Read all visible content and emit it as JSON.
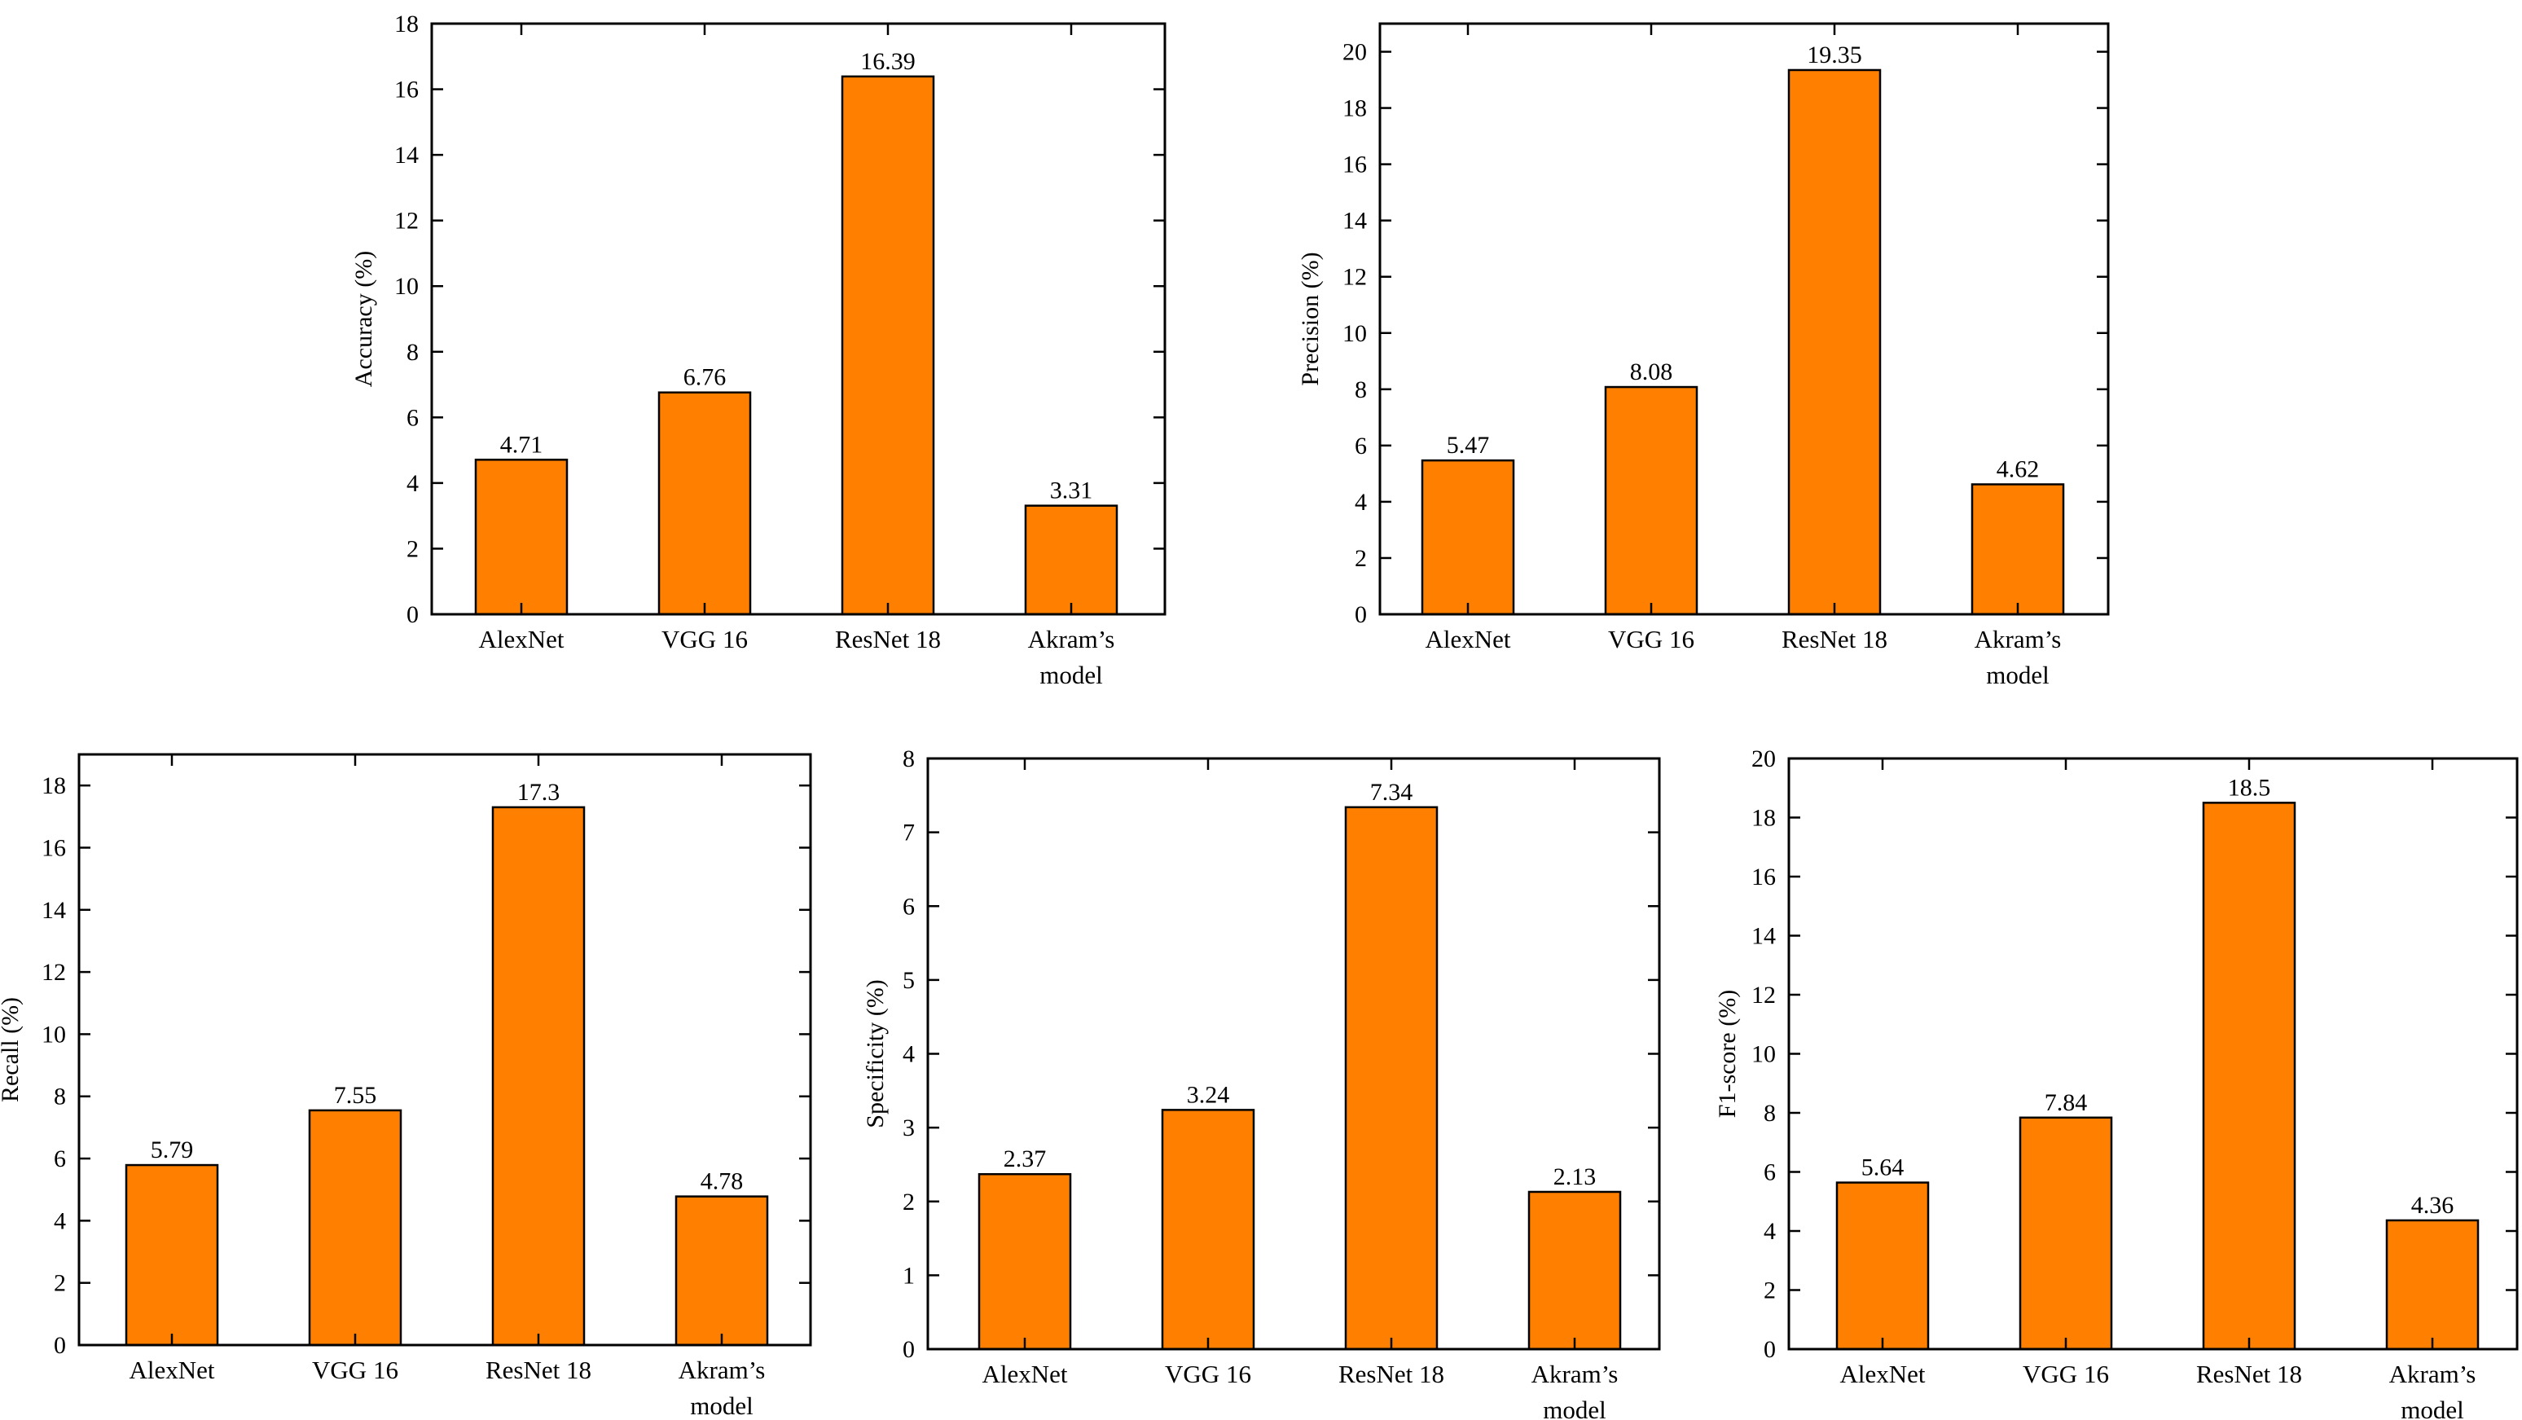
{
  "colors": {
    "bar_fill": "#FF8000",
    "bar_stroke": "#000000",
    "axis": "#000000"
  },
  "chart_data": [
    {
      "type": "bar",
      "categories": [
        "AlexNet",
        "VGG 16",
        "ResNet 18",
        "Akram’s model"
      ],
      "values": [
        4.71,
        6.76,
        16.39,
        3.31
      ],
      "value_labels": [
        "4.71",
        "6.76",
        "16.39",
        "3.31"
      ],
      "title": "",
      "xlabel": "",
      "ylabel": "Accuracy (%)",
      "ylim": [
        0,
        18
      ],
      "yticks": [
        0,
        2,
        4,
        6,
        8,
        10,
        12,
        14,
        16,
        18
      ],
      "grid": false
    },
    {
      "type": "bar",
      "categories": [
        "AlexNet",
        "VGG 16",
        "ResNet 18",
        "Akram’s model"
      ],
      "values": [
        5.47,
        8.08,
        19.35,
        4.62
      ],
      "value_labels": [
        "5.47",
        "8.08",
        "19.35",
        "4.62"
      ],
      "title": "",
      "xlabel": "",
      "ylabel": "Precision (%)",
      "ylim": [
        0,
        21
      ],
      "yticks": [
        0,
        2,
        4,
        6,
        8,
        10,
        12,
        14,
        16,
        18,
        20
      ],
      "grid": false
    },
    {
      "type": "bar",
      "categories": [
        "AlexNet",
        "VGG 16",
        "ResNet 18",
        "Akram’s model"
      ],
      "values": [
        5.79,
        7.55,
        17.3,
        4.78
      ],
      "value_labels": [
        "5.79",
        "7.55",
        "17.3",
        "4.78"
      ],
      "title": "",
      "xlabel": "",
      "ylabel": "Recall (%)",
      "ylim": [
        0,
        19
      ],
      "yticks": [
        0,
        2,
        4,
        6,
        8,
        10,
        12,
        14,
        16,
        18
      ],
      "grid": false
    },
    {
      "type": "bar",
      "categories": [
        "AlexNet",
        "VGG 16",
        "ResNet 18",
        "Akram’s model"
      ],
      "values": [
        2.37,
        3.24,
        7.34,
        2.13
      ],
      "value_labels": [
        "2.37",
        "3.24",
        "7.34",
        "2.13"
      ],
      "title": "",
      "xlabel": "",
      "ylabel": "Specificity (%)",
      "ylim": [
        0,
        8
      ],
      "yticks": [
        0,
        1,
        2,
        3,
        4,
        5,
        6,
        7,
        8
      ],
      "grid": false
    },
    {
      "type": "bar",
      "categories": [
        "AlexNet",
        "VGG 16",
        "ResNet 18",
        "Akram’s model"
      ],
      "values": [
        5.64,
        7.84,
        18.5,
        4.36
      ],
      "value_labels": [
        "5.64",
        "7.84",
        "18.5",
        "4.36"
      ],
      "title": "",
      "xlabel": "",
      "ylabel": "F1-score (%)",
      "ylim": [
        0,
        20
      ],
      "yticks": [
        0,
        2,
        4,
        6,
        8,
        10,
        12,
        14,
        16,
        18,
        20
      ],
      "grid": false
    }
  ]
}
